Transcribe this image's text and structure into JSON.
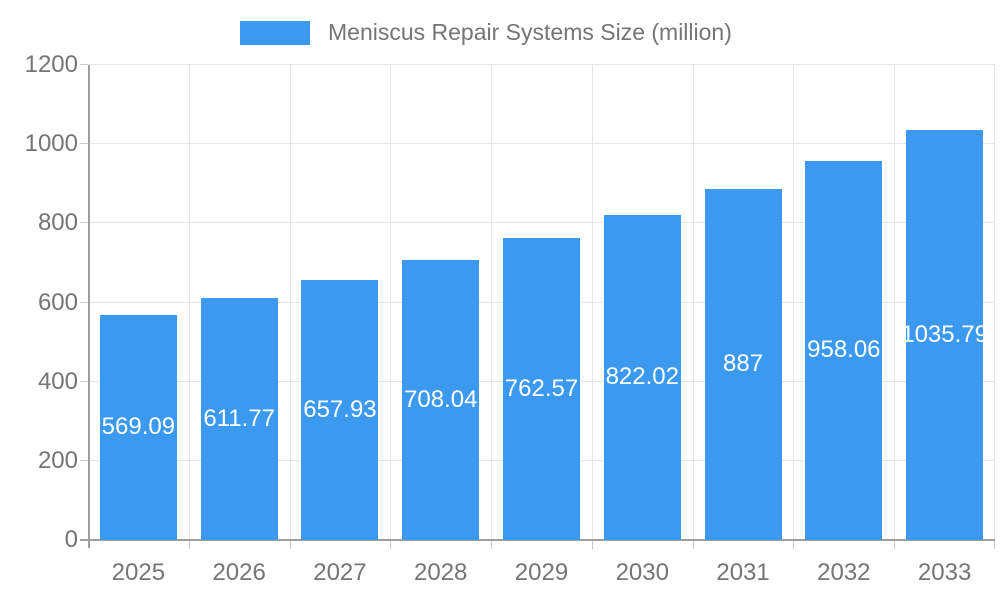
{
  "legend": {
    "label": "Meniscus Repair Systems Size (million)"
  },
  "colors": {
    "bar": "#3b9aef",
    "gridline": "#e6e6e6",
    "axis": "#9e9e9e",
    "tick": "#c9c9c9",
    "text": "#757575",
    "bar_label_text": "#ffffff",
    "background": "#ffffff"
  },
  "chart_data": {
    "type": "bar",
    "title": "Meniscus Repair Systems Size (million)",
    "categories": [
      "2025",
      "2026",
      "2027",
      "2028",
      "2029",
      "2030",
      "2031",
      "2032",
      "2033"
    ],
    "values": [
      569.09,
      611.77,
      657.93,
      708.04,
      762.57,
      822.02,
      887,
      958.06,
      1035.79
    ],
    "bar_labels": [
      "569.09",
      "611.77",
      "657.93",
      "708.04",
      "762.57",
      "822.02",
      "887",
      "958.06",
      "1035.79"
    ],
    "xlabel": "",
    "ylabel": "",
    "ylim": [
      0,
      1200
    ],
    "yticks": [
      0,
      200,
      400,
      600,
      800,
      1000,
      1200
    ],
    "grid": true,
    "legend_position": "top",
    "bar_color": "#3b9aef",
    "value_label_position": "center-inside",
    "value_label_color": "#ffffff"
  }
}
